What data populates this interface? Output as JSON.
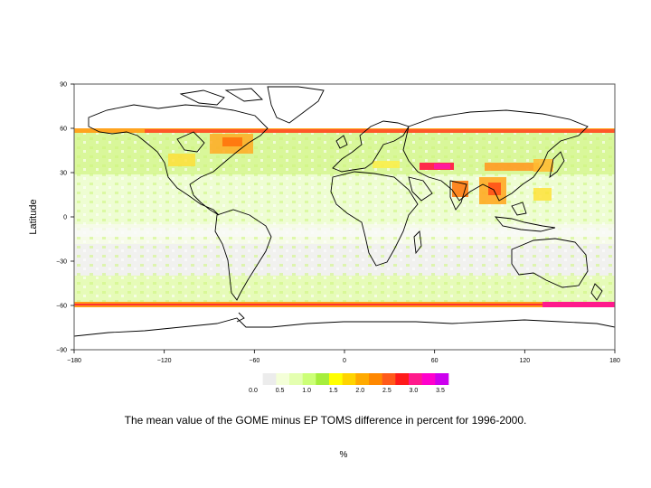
{
  "map": {
    "ylabel": "Latitude",
    "lat_ticks": [
      "90",
      "60",
      "30",
      "0",
      "−30",
      "−60",
      "−90"
    ],
    "lon_ticks": [
      "−180",
      "−120",
      "−60",
      "0",
      "60",
      "120",
      "180"
    ],
    "lat_range": [
      -90,
      90
    ],
    "lon_range": [
      -180,
      180
    ]
  },
  "colorbar": {
    "labels": [
      "0.0",
      "0.5",
      "1.0",
      "1.5",
      "2.0",
      "2.5",
      "3.0",
      "3.5"
    ],
    "colors": [
      "#ffffff",
      "#ececec",
      "#f4ffd8",
      "#e4ffb0",
      "#ccff77",
      "#a6ee3c",
      "#ffff00",
      "#ffd400",
      "#ffaa00",
      "#ff8800",
      "#ff5a1a",
      "#ff1a1a",
      "#ff1a8c",
      "#ff00cc",
      "#cc00ee"
    ]
  },
  "caption": "The mean value of the GOME minus EP TOMS difference in percent for 1996-2000.",
  "units": "%"
}
